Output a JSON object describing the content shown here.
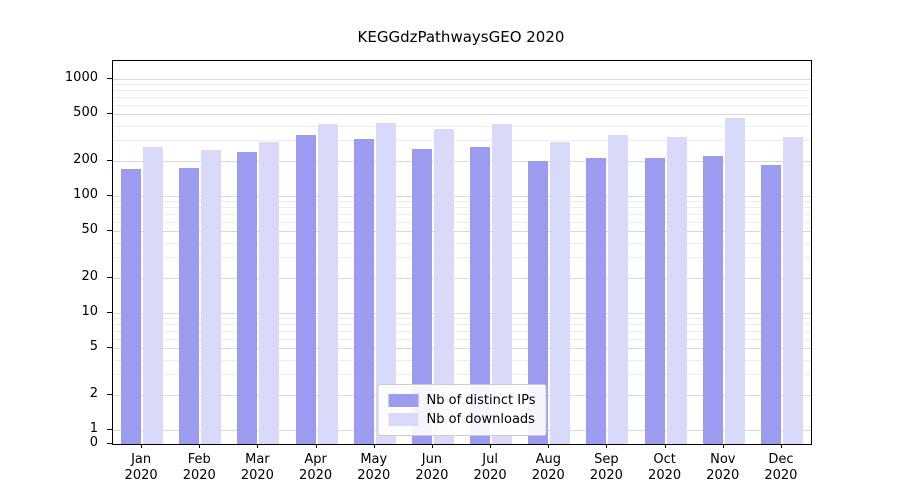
{
  "figure": {
    "background": "#ffffff"
  },
  "chart_data": {
    "type": "bar",
    "title": "KEGGdzPathwaysGEO 2020",
    "categories": [
      "Jan",
      "Feb",
      "Mar",
      "Apr",
      "May",
      "Jun",
      "Jul",
      "Aug",
      "Sep",
      "Oct",
      "Nov",
      "Dec"
    ],
    "year_label": "2020",
    "series": [
      {
        "name": "Nb of distinct IPs",
        "color": "#9b9bef",
        "values": [
          170,
          172,
          240,
          330,
          310,
          250,
          262,
          200,
          210,
          213,
          222,
          185
        ]
      },
      {
        "name": "Nb of downloads",
        "color": "#d9d9f9",
        "values": [
          262,
          248,
          292,
          415,
          425,
          375,
          415,
          292,
          335,
          320,
          465,
          318
        ]
      }
    ],
    "y_ticks": [
      0,
      1,
      2,
      5,
      10,
      20,
      50,
      100,
      200,
      500,
      1000
    ],
    "yscale": "symlog",
    "ylim": [
      0,
      1400
    ],
    "grid": "horizontal, major and minor log lines",
    "legend_position": "lower center"
  }
}
